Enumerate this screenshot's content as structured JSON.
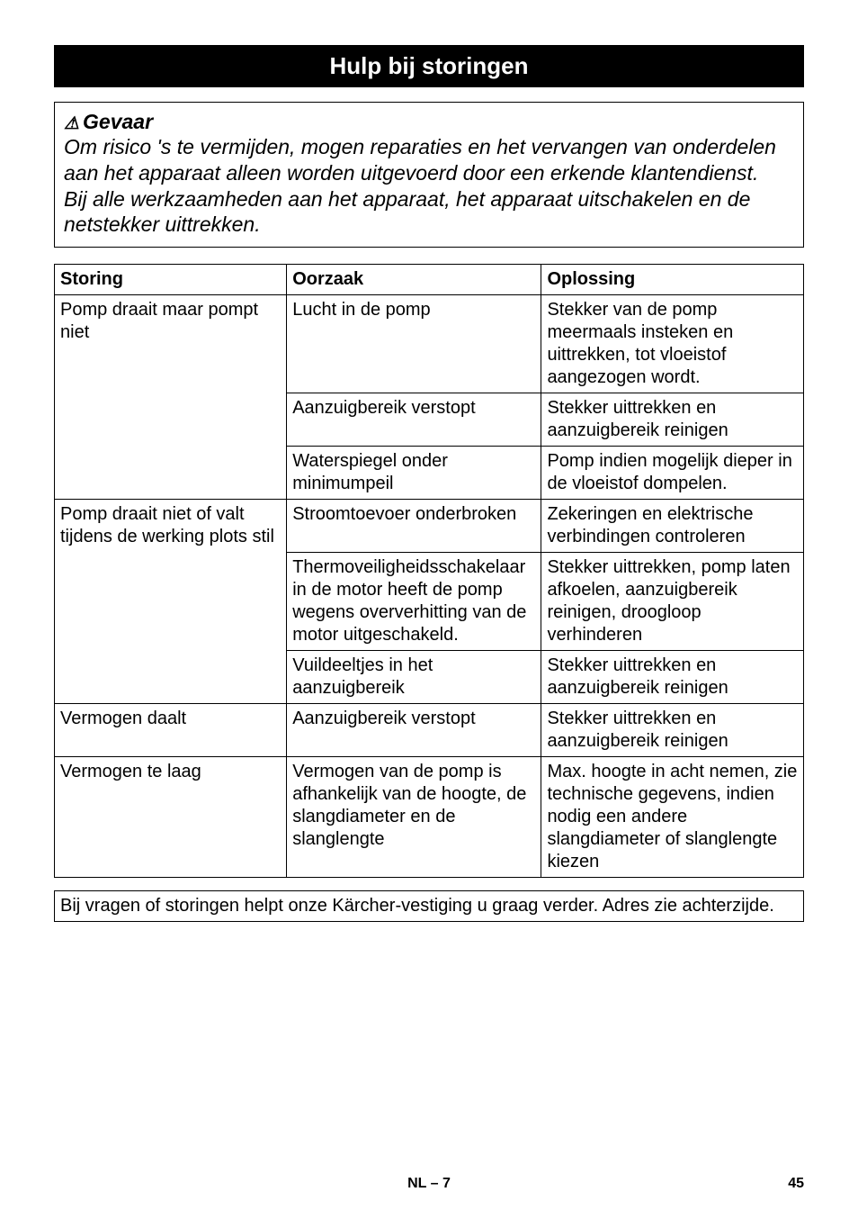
{
  "header": {
    "title": "Hulp bij storingen"
  },
  "warning": {
    "icon": "⚠",
    "label": "Gevaar",
    "paragraph1": "Om risico 's te vermijden, mogen reparaties en het vervangen van onderdelen aan het apparaat alleen worden uitgevoerd door een erkende klantendienst.",
    "paragraph2": "Bij alle werkzaamheden aan het apparaat, het apparaat uitschakelen en de netstekker uittrekken."
  },
  "table": {
    "headers": {
      "col1": "Storing",
      "col2": "Oorzaak",
      "col3": "Oplossing"
    },
    "rows": [
      {
        "storing": "Pomp draait maar pompt niet",
        "storing_rowspan": 3,
        "oorzaak": "Lucht in de pomp",
        "oplossing": "Stekker van de pomp meermaals insteken en uittrekken, tot vloeistof aangezogen wordt."
      },
      {
        "oorzaak": "Aanzuigbereik verstopt",
        "oplossing": "Stekker uittrekken en aanzuigbereik reinigen"
      },
      {
        "oorzaak": "Waterspiegel onder minimumpeil",
        "oplossing": "Pomp indien mogelijk dieper in de vloeistof dompelen."
      },
      {
        "storing": "Pomp draait niet of valt tijdens de werking plots stil",
        "storing_rowspan": 3,
        "oorzaak": "Stroomtoevoer onderbroken",
        "oplossing": "Zekeringen en elektrische verbindingen controleren"
      },
      {
        "oorzaak": "Thermoveiligheidsschakelaar in de motor heeft de pomp wegens oververhitting van de motor uitgeschakeld.",
        "oplossing": "Stekker uittrekken, pomp laten afkoelen, aanzuigbereik reinigen, droogloop verhinderen"
      },
      {
        "oorzaak": "Vuildeeltjes in het aanzuigbereik",
        "oplossing": "Stekker uittrekken en aanzuigbereik reinigen"
      },
      {
        "storing": "Vermogen daalt",
        "storing_rowspan": 1,
        "oorzaak": "Aanzuigbereik verstopt",
        "oplossing": "Stekker uittrekken en aanzuigbereik reinigen"
      },
      {
        "storing": "Vermogen te laag",
        "storing_rowspan": 1,
        "oorzaak": "Vermogen van de pomp is afhankelijk van de hoogte, de slangdiameter en de slanglengte",
        "oplossing": "Max. hoogte in acht nemen, zie technische gegevens, indien nodig een andere slangdiameter of slanglengte kiezen"
      }
    ]
  },
  "footerbox": {
    "text": "Bij vragen of storingen helpt onze Kärcher-vestiging u graag verder. Adres zie achterzijde."
  },
  "pagefooter": {
    "label": "NL – 7",
    "pagenum": "45"
  }
}
